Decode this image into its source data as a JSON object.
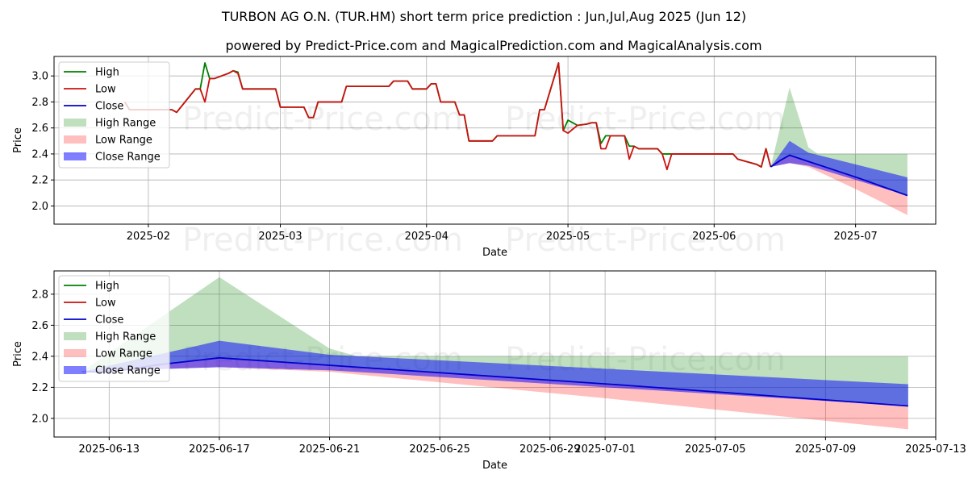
{
  "chart_data": [
    {
      "type": "line",
      "title": "TURBON AG O.N. (TUR.HM) short term price prediction : Jun,Jul,Aug 2025 (Jun 12)",
      "subtitle": "powered by Predict-Price.com and MagicalPrediction.com and MagicalAnalysis.com",
      "xlabel": "Date",
      "ylabel": "Price",
      "xlim": [
        "2025-01-12",
        "2025-07-18"
      ],
      "ylim": [
        1.86,
        3.15
      ],
      "x_ticks": [
        "2025-02",
        "2025-03",
        "2025-04",
        "2025-05",
        "2025-06",
        "2025-07"
      ],
      "x_tick_dates": [
        "2025-02-01",
        "2025-03-01",
        "2025-04-01",
        "2025-05-01",
        "2025-06-01",
        "2025-07-01"
      ],
      "y_ticks": [
        "2.0",
        "2.2",
        "2.4",
        "2.6",
        "2.8",
        "3.0"
      ],
      "legend": [
        "High",
        "Low",
        "Close",
        "High Range",
        "Low Range",
        "Close Range"
      ],
      "legend_position": "top-left",
      "watermark": [
        "Predict-Price.com",
        "Predict-Price.com",
        "Predict-Price.com",
        "Predict-Price.com"
      ],
      "series": [
        {
          "name": "High",
          "color": "#008000",
          "points": [
            [
              "2025-01-27",
              2.8
            ],
            [
              "2025-01-28",
              2.74
            ],
            [
              "2025-02-06",
              2.74
            ],
            [
              "2025-02-07",
              2.72
            ],
            [
              "2025-02-11",
              2.9
            ],
            [
              "2025-02-12",
              2.9
            ],
            [
              "2025-02-13",
              3.1
            ],
            [
              "2025-02-14",
              2.98
            ],
            [
              "2025-02-15",
              2.98
            ],
            [
              "2025-02-18",
              3.02
            ],
            [
              "2025-02-19",
              3.04
            ],
            [
              "2025-02-20",
              3.03
            ],
            [
              "2025-02-21",
              2.9
            ],
            [
              "2025-02-28",
              2.9
            ],
            [
              "2025-03-01",
              2.76
            ],
            [
              "2025-03-06",
              2.76
            ],
            [
              "2025-03-07",
              2.68
            ],
            [
              "2025-03-08",
              2.68
            ],
            [
              "2025-03-09",
              2.8
            ],
            [
              "2025-03-14",
              2.8
            ],
            [
              "2025-03-15",
              2.92
            ],
            [
              "2025-03-24",
              2.92
            ],
            [
              "2025-03-25",
              2.96
            ],
            [
              "2025-03-28",
              2.96
            ],
            [
              "2025-03-29",
              2.9
            ],
            [
              "2025-04-01",
              2.9
            ],
            [
              "2025-04-02",
              2.94
            ],
            [
              "2025-04-03",
              2.94
            ],
            [
              "2025-04-04",
              2.8
            ],
            [
              "2025-04-07",
              2.8
            ],
            [
              "2025-04-08",
              2.7
            ],
            [
              "2025-04-09",
              2.7
            ],
            [
              "2025-04-10",
              2.5
            ],
            [
              "2025-04-15",
              2.5
            ],
            [
              "2025-04-16",
              2.54
            ],
            [
              "2025-04-24",
              2.54
            ],
            [
              "2025-04-25",
              2.74
            ],
            [
              "2025-04-26",
              2.74
            ],
            [
              "2025-04-29",
              3.1
            ],
            [
              "2025-04-30",
              2.58
            ],
            [
              "2025-05-01",
              2.66
            ],
            [
              "2025-05-03",
              2.62
            ],
            [
              "2025-05-05",
              2.63
            ],
            [
              "2025-05-06",
              2.64
            ],
            [
              "2025-05-07",
              2.64
            ],
            [
              "2025-05-08",
              2.48
            ],
            [
              "2025-05-09",
              2.54
            ],
            [
              "2025-05-13",
              2.54
            ],
            [
              "2025-05-14",
              2.46
            ],
            [
              "2025-05-15",
              2.46
            ],
            [
              "2025-05-16",
              2.44
            ],
            [
              "2025-05-20",
              2.44
            ],
            [
              "2025-05-21",
              2.4
            ],
            [
              "2025-05-23",
              2.4
            ],
            [
              "2025-06-05",
              2.4
            ],
            [
              "2025-06-06",
              2.36
            ],
            [
              "2025-06-08",
              2.34
            ],
            [
              "2025-06-10",
              2.32
            ],
            [
              "2025-06-11",
              2.3
            ],
            [
              "2025-06-12",
              2.44
            ],
            [
              "2025-06-13",
              2.3
            ]
          ]
        },
        {
          "name": "Low",
          "color": "#cc1010",
          "points": [
            [
              "2025-01-27",
              2.8
            ],
            [
              "2025-01-28",
              2.74
            ],
            [
              "2025-02-06",
              2.74
            ],
            [
              "2025-02-07",
              2.72
            ],
            [
              "2025-02-11",
              2.9
            ],
            [
              "2025-02-12",
              2.9
            ],
            [
              "2025-02-13",
              2.8
            ],
            [
              "2025-02-14",
              2.98
            ],
            [
              "2025-02-15",
              2.98
            ],
            [
              "2025-02-18",
              3.02
            ],
            [
              "2025-02-19",
              3.04
            ],
            [
              "2025-02-20",
              3.02
            ],
            [
              "2025-02-21",
              2.9
            ],
            [
              "2025-02-28",
              2.9
            ],
            [
              "2025-03-01",
              2.76
            ],
            [
              "2025-03-06",
              2.76
            ],
            [
              "2025-03-07",
              2.68
            ],
            [
              "2025-03-08",
              2.68
            ],
            [
              "2025-03-09",
              2.8
            ],
            [
              "2025-03-14",
              2.8
            ],
            [
              "2025-03-15",
              2.92
            ],
            [
              "2025-03-24",
              2.92
            ],
            [
              "2025-03-25",
              2.96
            ],
            [
              "2025-03-28",
              2.96
            ],
            [
              "2025-03-29",
              2.9
            ],
            [
              "2025-04-01",
              2.9
            ],
            [
              "2025-04-02",
              2.94
            ],
            [
              "2025-04-03",
              2.94
            ],
            [
              "2025-04-04",
              2.8
            ],
            [
              "2025-04-07",
              2.8
            ],
            [
              "2025-04-08",
              2.7
            ],
            [
              "2025-04-09",
              2.7
            ],
            [
              "2025-04-10",
              2.5
            ],
            [
              "2025-04-15",
              2.5
            ],
            [
              "2025-04-16",
              2.54
            ],
            [
              "2025-04-24",
              2.54
            ],
            [
              "2025-04-25",
              2.74
            ],
            [
              "2025-04-26",
              2.74
            ],
            [
              "2025-04-29",
              3.1
            ],
            [
              "2025-04-30",
              2.58
            ],
            [
              "2025-05-01",
              2.56
            ],
            [
              "2025-05-03",
              2.62
            ],
            [
              "2025-05-05",
              2.63
            ],
            [
              "2025-05-06",
              2.64
            ],
            [
              "2025-05-07",
              2.64
            ],
            [
              "2025-05-08",
              2.44
            ],
            [
              "2025-05-09",
              2.44
            ],
            [
              "2025-05-10",
              2.54
            ],
            [
              "2025-05-13",
              2.54
            ],
            [
              "2025-05-14",
              2.36
            ],
            [
              "2025-05-15",
              2.46
            ],
            [
              "2025-05-16",
              2.44
            ],
            [
              "2025-05-20",
              2.44
            ],
            [
              "2025-05-21",
              2.4
            ],
            [
              "2025-05-22",
              2.28
            ],
            [
              "2025-05-23",
              2.4
            ],
            [
              "2025-06-05",
              2.4
            ],
            [
              "2025-06-06",
              2.36
            ],
            [
              "2025-06-08",
              2.34
            ],
            [
              "2025-06-10",
              2.32
            ],
            [
              "2025-06-11",
              2.3
            ],
            [
              "2025-06-12",
              2.44
            ],
            [
              "2025-06-13",
              2.3
            ]
          ]
        },
        {
          "name": "Close",
          "color": "#0000cc",
          "points": [
            [
              "2025-06-13",
              2.3
            ],
            [
              "2025-06-15",
              2.35
            ],
            [
              "2025-06-17",
              2.39
            ],
            [
              "2025-06-22",
              2.33
            ],
            [
              "2025-07-02",
              2.21
            ],
            [
              "2025-07-12",
              2.08
            ]
          ]
        }
      ],
      "ranges": [
        {
          "name": "High Range",
          "color": "#008000",
          "opacity": 0.25,
          "upper": [
            [
              "2025-06-13",
              2.3
            ],
            [
              "2025-06-17",
              2.91
            ],
            [
              "2025-06-21",
              2.45
            ],
            [
              "2025-06-23",
              2.4
            ],
            [
              "2025-07-12",
              2.4
            ]
          ],
          "lower": [
            [
              "2025-06-13",
              2.3
            ],
            [
              "2025-06-17",
              2.39
            ],
            [
              "2025-06-22",
              2.33
            ],
            [
              "2025-07-02",
              2.21
            ],
            [
              "2025-07-12",
              2.08
            ]
          ]
        },
        {
          "name": "Low Range",
          "color": "#ff0000",
          "opacity": 0.25,
          "upper": [
            [
              "2025-06-13",
              2.3
            ],
            [
              "2025-06-17",
              2.39
            ],
            [
              "2025-06-22",
              2.33
            ],
            [
              "2025-07-02",
              2.21
            ],
            [
              "2025-07-12",
              2.08
            ]
          ],
          "lower": [
            [
              "2025-06-13",
              2.3
            ],
            [
              "2025-06-17",
              2.33
            ],
            [
              "2025-06-21",
              2.3
            ],
            [
              "2025-07-01",
              2.13
            ],
            [
              "2025-07-12",
              1.93
            ]
          ]
        },
        {
          "name": "Close Range",
          "color": "#0000ff",
          "opacity": 0.5,
          "upper": [
            [
              "2025-06-13",
              2.3
            ],
            [
              "2025-06-17",
              2.5
            ],
            [
              "2025-06-21",
              2.41
            ],
            [
              "2025-07-12",
              2.22
            ]
          ],
          "lower": [
            [
              "2025-06-13",
              2.3
            ],
            [
              "2025-06-17",
              2.33
            ],
            [
              "2025-06-21",
              2.31
            ],
            [
              "2025-07-12",
              2.08
            ]
          ]
        }
      ]
    },
    {
      "type": "line",
      "xlabel": "Date",
      "ylabel": "Price",
      "xlim": [
        "2025-06-11",
        "2025-07-13"
      ],
      "ylim": [
        1.88,
        2.95
      ],
      "x_ticks": [
        "2025-06-13",
        "2025-06-17",
        "2025-06-21",
        "2025-06-25",
        "2025-06-29",
        "2025-07-01",
        "2025-07-05",
        "2025-07-09",
        "2025-07-13"
      ],
      "x_tick_dates": [
        "2025-06-13",
        "2025-06-17",
        "2025-06-21",
        "2025-06-25",
        "2025-06-29",
        "2025-07-01",
        "2025-07-05",
        "2025-07-09",
        "2025-07-13"
      ],
      "y_ticks": [
        "2.0",
        "2.2",
        "2.4",
        "2.6",
        "2.8"
      ],
      "legend": [
        "High",
        "Low",
        "Close",
        "High Range",
        "Low Range",
        "Close Range"
      ],
      "legend_position": "top-left",
      "watermark": [
        "Predict-Price.com",
        "Predict-Price.com"
      ],
      "series": [
        {
          "name": "Close",
          "color": "#0000cc",
          "points": [
            [
              "2025-06-12",
              2.3
            ],
            [
              "2025-06-13",
              2.3
            ],
            [
              "2025-06-15",
              2.35
            ],
            [
              "2025-06-17",
              2.39
            ],
            [
              "2025-06-22",
              2.33
            ],
            [
              "2025-07-02",
              2.21
            ],
            [
              "2025-07-12",
              2.08
            ]
          ]
        }
      ],
      "ranges": [
        {
          "name": "High Range",
          "color": "#008000",
          "opacity": 0.25,
          "upper": [
            [
              "2025-06-12",
              2.3
            ],
            [
              "2025-06-17",
              2.91
            ],
            [
              "2025-06-21",
              2.45
            ],
            [
              "2025-06-22",
              2.4
            ],
            [
              "2025-07-12",
              2.4
            ]
          ],
          "lower": [
            [
              "2025-06-12",
              2.3
            ],
            [
              "2025-06-17",
              2.39
            ],
            [
              "2025-06-22",
              2.33
            ],
            [
              "2025-07-02",
              2.21
            ],
            [
              "2025-07-12",
              2.08
            ]
          ]
        },
        {
          "name": "Low Range",
          "color": "#ff0000",
          "opacity": 0.25,
          "upper": [
            [
              "2025-06-12",
              2.3
            ],
            [
              "2025-06-17",
              2.39
            ],
            [
              "2025-06-22",
              2.33
            ],
            [
              "2025-07-02",
              2.21
            ],
            [
              "2025-07-12",
              2.08
            ]
          ],
          "lower": [
            [
              "2025-06-12",
              2.3
            ],
            [
              "2025-06-17",
              2.33
            ],
            [
              "2025-06-21",
              2.3
            ],
            [
              "2025-07-01",
              2.13
            ],
            [
              "2025-07-12",
              1.93
            ]
          ]
        },
        {
          "name": "Close Range",
          "color": "#0000ff",
          "opacity": 0.5,
          "upper": [
            [
              "2025-06-12",
              2.3
            ],
            [
              "2025-06-17",
              2.5
            ],
            [
              "2025-06-21",
              2.41
            ],
            [
              "2025-07-12",
              2.22
            ]
          ],
          "lower": [
            [
              "2025-06-12",
              2.3
            ],
            [
              "2025-06-17",
              2.33
            ],
            [
              "2025-06-21",
              2.31
            ],
            [
              "2025-07-12",
              2.08
            ]
          ]
        }
      ]
    }
  ]
}
